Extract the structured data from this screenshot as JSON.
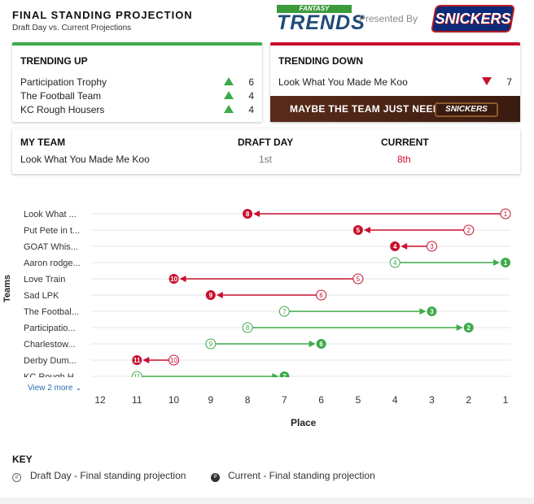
{
  "header": {
    "title": "FINAL STANDING PROJECTION",
    "subtitle": "Draft Day vs. Current Projections",
    "logo_top": "FANTASY",
    "logo_main": "TRENDS",
    "presented_by": "Presented By",
    "sponsor": "SNICKERS"
  },
  "trending_up": {
    "title": "TRENDING UP",
    "items": [
      {
        "name": "Participation Trophy",
        "value": "6"
      },
      {
        "name": "The Football Team",
        "value": "4"
      },
      {
        "name": "KC Rough Housers",
        "value": "4"
      }
    ]
  },
  "trending_down": {
    "title": "TRENDING DOWN",
    "items": [
      {
        "name": "Look What You Made Me Koo",
        "value": "7"
      }
    ],
    "ad_text": "MAYBE THE TEAM JUST NEEDS A",
    "ad_bar": "SNICKERS"
  },
  "my_team": {
    "label": "MY TEAM",
    "draft_label": "DRAFT DAY",
    "current_label": "CURRENT",
    "name": "Look What You Made Me Koo",
    "draft_value": "1st",
    "current_value": "8th"
  },
  "colors": {
    "up": "#3eaa4a",
    "down": "#c8102e",
    "accent_link": "#2e6db4"
  },
  "chart_data": {
    "type": "dumbbell",
    "xlabel": "Place",
    "ylabel": "Teams",
    "xlim": [
      12,
      1
    ],
    "x_ticks": [
      12,
      11,
      10,
      9,
      8,
      7,
      6,
      5,
      4,
      3,
      2,
      1
    ],
    "teams": [
      {
        "label": "Look What ...",
        "draft": 1,
        "current": 8
      },
      {
        "label": "Put Pete in t...",
        "draft": 2,
        "current": 5
      },
      {
        "label": "GOAT Whis...",
        "draft": 3,
        "current": 4
      },
      {
        "label": "Aaron rodge...",
        "draft": 4,
        "current": 1
      },
      {
        "label": "Love Train",
        "draft": 5,
        "current": 10
      },
      {
        "label": "Sad LPK",
        "draft": 6,
        "current": 9
      },
      {
        "label": "The Footbal...",
        "draft": 7,
        "current": 3
      },
      {
        "label": "Participatio...",
        "draft": 8,
        "current": 2
      },
      {
        "label": "Charlestow...",
        "draft": 9,
        "current": 6
      },
      {
        "label": "Derby Dum...",
        "draft": 10,
        "current": 11
      },
      {
        "label": "KC Rough H...",
        "draft": 11,
        "current": 7
      }
    ]
  },
  "view_more": "View 2 more",
  "key": {
    "title": "KEY",
    "draft_symbol": "#",
    "current_symbol": "#",
    "draft_text": "Draft Day - Final standing projection",
    "current_text": "Current - Final standing projection"
  }
}
